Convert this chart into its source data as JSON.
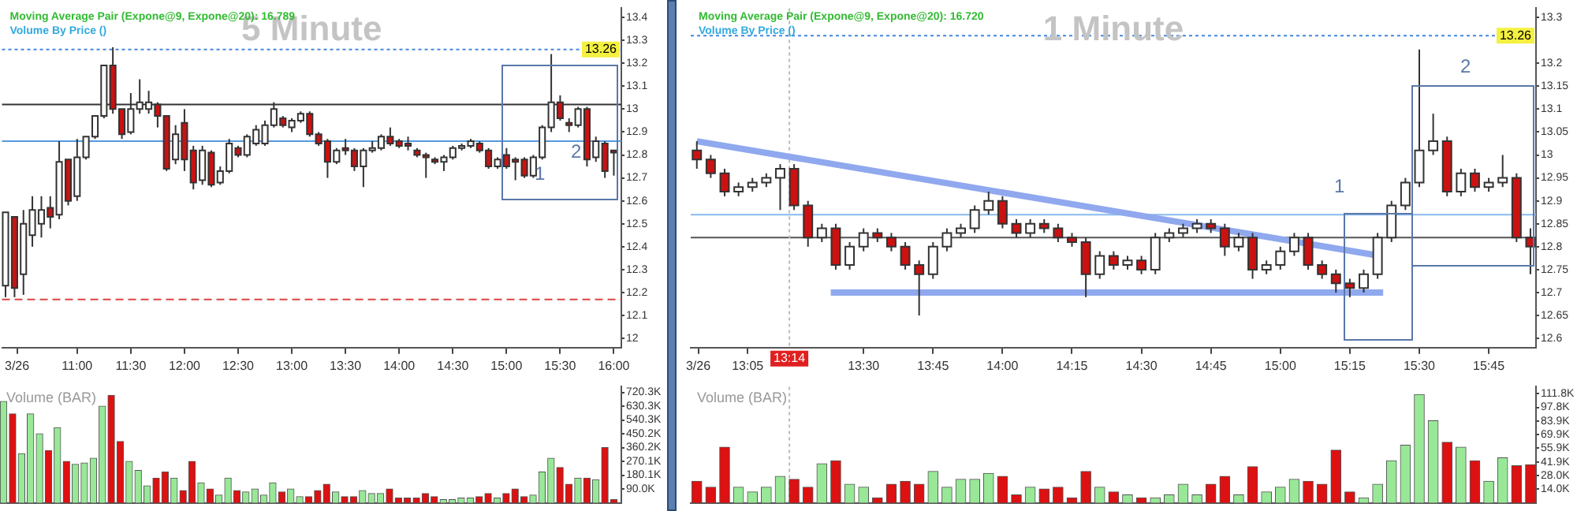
{
  "chart_data": [
    {
      "type": "candlestick",
      "title": "5 Minute",
      "x": [
        10.333,
        10.417,
        10.5,
        10.583,
        10.667,
        10.75,
        10.833,
        10.917,
        11,
        11.083,
        11.167,
        11.25,
        11.333,
        11.417,
        11.5,
        11.583,
        11.667,
        11.75,
        11.833,
        11.917,
        12,
        12.083,
        12.167,
        12.25,
        12.333,
        12.417,
        12.5,
        12.583,
        12.667,
        12.75,
        12.833,
        12.917,
        13,
        13.083,
        13.167,
        13.25,
        13.333,
        13.417,
        13.5,
        13.583,
        13.667,
        13.75,
        13.833,
        13.917,
        14,
        14.083,
        14.167,
        14.25,
        14.333,
        14.417,
        14.5,
        14.583,
        14.667,
        14.75,
        14.833,
        14.917,
        15,
        15.083,
        15.167,
        15.25,
        15.333,
        15.417,
        15.5,
        15.583,
        15.667,
        15.75,
        15.833,
        15.917,
        16
      ],
      "ohlc": [
        [
          12.23,
          12.55,
          12.18,
          12.55
        ],
        [
          12.53,
          12.53,
          12.18,
          12.22
        ],
        [
          12.28,
          12.56,
          12.19,
          12.5
        ],
        [
          12.45,
          12.62,
          12.4,
          12.56
        ],
        [
          12.5,
          12.62,
          12.44,
          12.56
        ],
        [
          12.57,
          12.62,
          12.48,
          12.53
        ],
        [
          12.54,
          12.86,
          12.52,
          12.77
        ],
        [
          12.78,
          12.78,
          12.58,
          12.6
        ],
        [
          12.62,
          12.87,
          12.6,
          12.79
        ],
        [
          12.79,
          12.88,
          12.78,
          12.88
        ],
        [
          12.88,
          12.97,
          12.87,
          12.97
        ],
        [
          12.97,
          13.19,
          12.96,
          13.19
        ],
        [
          13.19,
          13.27,
          12.98,
          13.0
        ],
        [
          13.0,
          13.0,
          12.87,
          12.89
        ],
        [
          12.9,
          13.07,
          12.89,
          13.0
        ],
        [
          13.0,
          13.13,
          12.98,
          13.03
        ],
        [
          13.0,
          13.08,
          12.98,
          13.03
        ],
        [
          13.02,
          13.03,
          12.92,
          12.97
        ],
        [
          12.97,
          12.97,
          12.73,
          12.74
        ],
        [
          12.78,
          12.93,
          12.76,
          12.89
        ],
        [
          12.94,
          13.0,
          12.73,
          12.78
        ],
        [
          12.82,
          12.84,
          12.65,
          12.68
        ],
        [
          12.69,
          12.84,
          12.67,
          12.82
        ],
        [
          12.81,
          12.82,
          12.66,
          12.67
        ],
        [
          12.68,
          12.75,
          12.67,
          12.73
        ],
        [
          12.73,
          12.87,
          12.72,
          12.85
        ],
        [
          12.83,
          12.84,
          12.79,
          12.8
        ],
        [
          12.8,
          12.89,
          12.79,
          12.88
        ],
        [
          12.85,
          12.93,
          12.84,
          12.91
        ],
        [
          12.85,
          12.95,
          12.84,
          12.93
        ],
        [
          12.93,
          13.03,
          12.92,
          13.0
        ],
        [
          12.96,
          12.97,
          12.92,
          12.93
        ],
        [
          12.92,
          12.96,
          12.9,
          12.95
        ],
        [
          12.95,
          12.99,
          12.94,
          12.98
        ],
        [
          12.98,
          12.99,
          12.88,
          12.89
        ],
        [
          12.89,
          12.9,
          12.84,
          12.85
        ],
        [
          12.86,
          12.87,
          12.7,
          12.77
        ],
        [
          12.77,
          12.83,
          12.76,
          12.82
        ],
        [
          12.83,
          12.87,
          12.8,
          12.82
        ],
        [
          12.82,
          12.83,
          12.73,
          12.75
        ],
        [
          12.75,
          12.83,
          12.66,
          12.82
        ],
        [
          12.82,
          12.86,
          12.81,
          12.83
        ],
        [
          12.83,
          12.89,
          12.82,
          12.88
        ],
        [
          12.88,
          12.92,
          12.84,
          12.85
        ],
        [
          12.86,
          12.87,
          12.83,
          12.84
        ],
        [
          12.85,
          12.88,
          12.82,
          12.84
        ],
        [
          12.82,
          12.83,
          12.79,
          12.8
        ],
        [
          12.8,
          12.81,
          12.7,
          12.79
        ],
        [
          12.78,
          12.79,
          12.76,
          12.77
        ],
        [
          12.77,
          12.8,
          12.73,
          12.79
        ],
        [
          12.79,
          12.84,
          12.78,
          12.83
        ],
        [
          12.83,
          12.85,
          12.82,
          12.84
        ],
        [
          12.84,
          12.87,
          12.83,
          12.86
        ],
        [
          12.85,
          12.86,
          12.81,
          12.82
        ],
        [
          12.82,
          12.83,
          12.74,
          12.75
        ],
        [
          12.75,
          12.79,
          12.74,
          12.78
        ],
        [
          12.8,
          12.83,
          12.74,
          12.75
        ],
        [
          12.78,
          12.79,
          12.69,
          12.77
        ],
        [
          12.78,
          12.79,
          12.7,
          12.71
        ],
        [
          12.71,
          12.8,
          12.7,
          12.79
        ],
        [
          12.79,
          12.93,
          12.78,
          12.92
        ],
        [
          12.92,
          13.24,
          12.9,
          13.03
        ],
        [
          13.03,
          13.06,
          12.95,
          12.96
        ],
        [
          12.94,
          12.96,
          12.9,
          12.93
        ],
        [
          12.93,
          13.01,
          12.92,
          13.0
        ],
        [
          13.0,
          13.01,
          12.75,
          12.78
        ],
        [
          12.79,
          12.88,
          12.77,
          12.86
        ],
        [
          12.85,
          12.86,
          12.7,
          12.73
        ],
        [
          12.82,
          12.82,
          12.71,
          12.81
        ]
      ],
      "colors": [
        "#ffffff",
        "#cc1111",
        "#ffffff",
        "#ffffff",
        "#ffffff",
        "#cc1111",
        "#ffffff",
        "#cc1111",
        "#ffffff",
        "#ffffff",
        "#ffffff",
        "#ffffff",
        "#cc1111",
        "#cc1111",
        "#ffffff",
        "#ffffff",
        "#ffffff",
        "#cc1111",
        "#cc1111",
        "#ffffff",
        "#cc1111",
        "#cc1111",
        "#ffffff",
        "#cc1111",
        "#ffffff",
        "#ffffff",
        "#cc1111",
        "#ffffff",
        "#ffffff",
        "#ffffff",
        "#ffffff",
        "#cc1111",
        "#ffffff",
        "#ffffff",
        "#cc1111",
        "#cc1111",
        "#cc1111",
        "#ffffff",
        "#cc1111",
        "#cc1111",
        "#ffffff",
        "#ffffff",
        "#ffffff",
        "#cc1111",
        "#cc1111",
        "#cc1111",
        "#cc1111",
        "#cc1111",
        "#cc1111",
        "#ffffff",
        "#ffffff",
        "#ffffff",
        "#ffffff",
        "#cc1111",
        "#cc1111",
        "#ffffff",
        "#cc1111",
        "#cc1111",
        "#cc1111",
        "#ffffff",
        "#ffffff",
        "#ffffff",
        "#cc1111",
        "#cc1111",
        "#ffffff",
        "#cc1111",
        "#ffffff",
        "#cc1111",
        "#cc1111"
      ],
      "xlim": [
        10.3,
        16.07
      ],
      "ylim": [
        11.96,
        13.44
      ],
      "xticks": [
        {
          "value": 10.44,
          "label": "3/26"
        },
        {
          "value": 11,
          "label": "11:00"
        },
        {
          "value": 11.5,
          "label": "11:30"
        },
        {
          "value": 12,
          "label": "12:00"
        },
        {
          "value": 12.5,
          "label": "12:30"
        },
        {
          "value": 13,
          "label": "13:00"
        },
        {
          "value": 13.5,
          "label": "13:30"
        },
        {
          "value": 14,
          "label": "14:00"
        },
        {
          "value": 14.5,
          "label": "14:30"
        },
        {
          "value": 15,
          "label": "15:00"
        },
        {
          "value": 15.5,
          "label": "15:30"
        },
        {
          "value": 16,
          "label": "16:00"
        }
      ],
      "yticks": [
        12,
        12.1,
        12.2,
        12.3,
        12.4,
        12.5,
        12.6,
        12.7,
        12.8,
        12.9,
        13,
        13.1,
        13.2,
        13.3,
        13.4
      ],
      "ref_lines": [
        {
          "axis": "y",
          "value": 13.26,
          "label": "13.26",
          "color": "#4488dd",
          "line_style": "dotted"
        },
        {
          "axis": "y",
          "value": 13.02,
          "color": "#333333"
        },
        {
          "axis": "y",
          "value": 12.86,
          "color": "#5599dd"
        },
        {
          "axis": "y",
          "value": 12.17,
          "color": "#dd4444",
          "line_style": "dashed"
        }
      ],
      "annotations": [
        "Moving Average Pair (Expone@9, Expone@20): 16.789",
        "Volume By Price ()",
        "1",
        "2"
      ]
    },
    {
      "type": "candlestick",
      "title": "1 Minute",
      "x": [
        12.9,
        12.95,
        13,
        13.05,
        13.1,
        13.15,
        13.2,
        13.25,
        13.3,
        13.35,
        13.4,
        13.45,
        13.5,
        13.55,
        13.6,
        13.65,
        13.7,
        13.75,
        13.8,
        13.85,
        13.9,
        13.95,
        14,
        14.05,
        14.1,
        14.15,
        14.2,
        14.25,
        14.3,
        14.35,
        14.4,
        14.45,
        14.5,
        14.55,
        14.6,
        14.65,
        14.7,
        14.75,
        14.8,
        14.85,
        14.9,
        14.95,
        15,
        15.05,
        15.1,
        15.15,
        15.2,
        15.25,
        15.3,
        15.35,
        15.4,
        15.45,
        15.5,
        15.55,
        15.6,
        15.65,
        15.7,
        15.75,
        15.8,
        15.85,
        15.9
      ],
      "ohlc": [
        [
          13.01,
          13.03,
          12.97,
          12.99
        ],
        [
          12.99,
          13.0,
          12.95,
          12.96
        ],
        [
          12.96,
          12.97,
          12.91,
          12.92
        ],
        [
          12.92,
          12.94,
          12.91,
          12.93
        ],
        [
          12.93,
          12.95,
          12.92,
          12.94
        ],
        [
          12.94,
          12.96,
          12.93,
          12.95
        ],
        [
          12.95,
          12.98,
          12.88,
          12.97
        ],
        [
          12.97,
          12.98,
          12.88,
          12.89
        ],
        [
          12.89,
          12.9,
          12.8,
          12.82
        ],
        [
          12.82,
          12.85,
          12.81,
          12.84
        ],
        [
          12.84,
          12.85,
          12.75,
          12.76
        ],
        [
          12.76,
          12.81,
          12.75,
          12.8
        ],
        [
          12.8,
          12.84,
          12.79,
          12.83
        ],
        [
          12.83,
          12.84,
          12.81,
          12.82
        ],
        [
          12.82,
          12.83,
          12.79,
          12.8
        ],
        [
          12.8,
          12.81,
          12.75,
          12.76
        ],
        [
          12.76,
          12.77,
          12.65,
          12.74
        ],
        [
          12.74,
          12.81,
          12.73,
          12.8
        ],
        [
          12.8,
          12.84,
          12.79,
          12.83
        ],
        [
          12.83,
          12.85,
          12.82,
          12.84
        ],
        [
          12.84,
          12.89,
          12.83,
          12.88
        ],
        [
          12.88,
          12.92,
          12.87,
          12.9
        ],
        [
          12.9,
          12.91,
          12.84,
          12.85
        ],
        [
          12.85,
          12.86,
          12.82,
          12.83
        ],
        [
          12.83,
          12.86,
          12.82,
          12.85
        ],
        [
          12.85,
          12.86,
          12.83,
          12.84
        ],
        [
          12.84,
          12.85,
          12.81,
          12.82
        ],
        [
          12.82,
          12.83,
          12.8,
          12.81
        ],
        [
          12.81,
          12.82,
          12.69,
          12.74
        ],
        [
          12.74,
          12.79,
          12.73,
          12.78
        ],
        [
          12.78,
          12.79,
          12.75,
          12.76
        ],
        [
          12.76,
          12.78,
          12.75,
          12.77
        ],
        [
          12.77,
          12.78,
          12.74,
          12.75
        ],
        [
          12.75,
          12.83,
          12.74,
          12.82
        ],
        [
          12.82,
          12.84,
          12.81,
          12.83
        ],
        [
          12.83,
          12.85,
          12.82,
          12.84
        ],
        [
          12.84,
          12.86,
          12.83,
          12.85
        ],
        [
          12.85,
          12.86,
          12.83,
          12.84
        ],
        [
          12.84,
          12.85,
          12.78,
          12.8
        ],
        [
          12.8,
          12.83,
          12.79,
          12.82
        ],
        [
          12.82,
          12.83,
          12.73,
          12.75
        ],
        [
          12.75,
          12.77,
          12.74,
          12.76
        ],
        [
          12.76,
          12.8,
          12.75,
          12.79
        ],
        [
          12.79,
          12.83,
          12.78,
          12.82
        ],
        [
          12.82,
          12.83,
          12.75,
          12.76
        ],
        [
          12.76,
          12.77,
          12.73,
          12.74
        ],
        [
          12.74,
          12.75,
          12.7,
          12.72
        ],
        [
          12.72,
          12.73,
          12.69,
          12.71
        ],
        [
          12.71,
          12.75,
          12.7,
          12.74
        ],
        [
          12.74,
          12.83,
          12.73,
          12.82
        ],
        [
          12.82,
          12.9,
          12.81,
          12.89
        ],
        [
          12.89,
          12.95,
          12.88,
          12.94
        ],
        [
          12.94,
          13.23,
          12.93,
          13.01
        ],
        [
          13.01,
          13.09,
          13.0,
          13.03
        ],
        [
          13.03,
          13.04,
          12.91,
          12.92
        ],
        [
          12.92,
          12.97,
          12.91,
          12.96
        ],
        [
          12.96,
          12.97,
          12.92,
          12.93
        ],
        [
          12.93,
          12.95,
          12.92,
          12.94
        ],
        [
          12.94,
          13.0,
          12.93,
          12.95
        ],
        [
          12.95,
          12.96,
          12.81,
          12.82
        ],
        [
          12.82,
          12.84,
          12.74,
          12.8
        ]
      ],
      "colors": [
        "#cc1111",
        "#cc1111",
        "#cc1111",
        "#ffffff",
        "#ffffff",
        "#ffffff",
        "#ffffff",
        "#cc1111",
        "#cc1111",
        "#ffffff",
        "#cc1111",
        "#ffffff",
        "#ffffff",
        "#cc1111",
        "#cc1111",
        "#cc1111",
        "#cc1111",
        "#ffffff",
        "#ffffff",
        "#ffffff",
        "#ffffff",
        "#ffffff",
        "#cc1111",
        "#cc1111",
        "#ffffff",
        "#cc1111",
        "#cc1111",
        "#cc1111",
        "#cc1111",
        "#ffffff",
        "#cc1111",
        "#ffffff",
        "#cc1111",
        "#ffffff",
        "#ffffff",
        "#ffffff",
        "#ffffff",
        "#cc1111",
        "#cc1111",
        "#ffffff",
        "#cc1111",
        "#ffffff",
        "#ffffff",
        "#ffffff",
        "#cc1111",
        "#cc1111",
        "#cc1111",
        "#cc1111",
        "#ffffff",
        "#ffffff",
        "#ffffff",
        "#ffffff",
        "#ffffff",
        "#ffffff",
        "#cc1111",
        "#ffffff",
        "#cc1111",
        "#ffffff",
        "#ffffff",
        "#cc1111",
        "#cc1111"
      ],
      "series": [
        {
          "type": "line",
          "color": "#8fa8ee",
          "x": [
            12.9,
            15.36
          ],
          "values": [
            13.03,
            12.78
          ]
        },
        {
          "type": "line",
          "color": "#8fa8ee",
          "x": [
            13.382,
            15.37
          ],
          "values": [
            12.7,
            12.7
          ]
        }
      ],
      "xlim": [
        12.878,
        15.92
      ],
      "ylim": [
        12.58,
        13.32
      ],
      "xticks": [
        {
          "value": 12.905,
          "label": "3/26"
        },
        {
          "value": 13.083,
          "label": "13:05"
        },
        {
          "value": 13.5,
          "label": "13:30"
        },
        {
          "value": 13.75,
          "label": "13:45"
        },
        {
          "value": 14,
          "label": "14:00"
        },
        {
          "value": 14.25,
          "label": "14:15"
        },
        {
          "value": 14.5,
          "label": "14:30"
        },
        {
          "value": 14.75,
          "label": "14:45"
        },
        {
          "value": 15,
          "label": "15:00"
        },
        {
          "value": 15.25,
          "label": "15:15"
        },
        {
          "value": 15.5,
          "label": "15:30"
        },
        {
          "value": 15.75,
          "label": "15:45"
        }
      ],
      "yticks": [
        12.6,
        12.65,
        12.7,
        12.75,
        12.8,
        12.85,
        12.9,
        12.95,
        13,
        13.05,
        13.1,
        13.15,
        13.2,
        13.3
      ],
      "ref_lines": [
        {
          "axis": "y",
          "value": 13.26,
          "label": "13.26",
          "color": "#4488dd",
          "line_style": "dotted"
        },
        {
          "axis": "y",
          "value": 12.87,
          "color": "#88bbee"
        },
        {
          "axis": "y",
          "value": 12.82,
          "color": "#555555"
        },
        {
          "axis": "x",
          "value": 13.233,
          "label": "13:14",
          "color": "#bbbbbb",
          "line_style": "dotted"
        }
      ],
      "annotations": [
        "Moving Average Pair (Expone@9, Expone@20): 16.720",
        "Volume By Price ()",
        "1",
        "2"
      ]
    },
    {
      "type": "bar",
      "title": "Volume (BAR)",
      "x": [
        10.333,
        10.417,
        10.5,
        10.583,
        10.667,
        10.75,
        10.833,
        10.917,
        11,
        11.083,
        11.167,
        11.25,
        11.333,
        11.417,
        11.5,
        11.583,
        11.667,
        11.75,
        11.833,
        11.917,
        12,
        12.083,
        12.167,
        12.25,
        12.333,
        12.417,
        12.5,
        12.583,
        12.667,
        12.75,
        12.833,
        12.917,
        13,
        13.083,
        13.167,
        13.25,
        13.333,
        13.417,
        13.5,
        13.583,
        13.667,
        13.75,
        13.833,
        13.917,
        14,
        14.083,
        14.167,
        14.25,
        14.333,
        14.417,
        14.5,
        14.583,
        14.667,
        14.75,
        14.833,
        14.917,
        15,
        15.083,
        15.167,
        15.25,
        15.333,
        15.417,
        15.5,
        15.583,
        15.667,
        15.75,
        15.833,
        15.917,
        16
      ],
      "values": [
        660,
        580,
        320,
        580,
        450,
        340,
        490,
        270,
        250,
        260,
        290,
        630,
        700,
        400,
        270,
        210,
        110,
        160,
        200,
        160,
        80,
        270,
        130,
        90,
        50,
        160,
        80,
        70,
        90,
        50,
        130,
        70,
        90,
        40,
        40,
        80,
        120,
        70,
        40,
        40,
        80,
        60,
        60,
        90,
        30,
        30,
        30,
        60,
        40,
        20,
        20,
        30,
        30,
        40,
        60,
        30,
        60,
        90,
        40,
        50,
        200,
        290,
        230,
        120,
        160,
        160,
        150,
        360,
        20
      ],
      "colors": [
        "#98e898",
        "#dd1111",
        "#98e898",
        "#98e898",
        "#98e898",
        "#dd1111",
        "#98e898",
        "#dd1111",
        "#98e898",
        "#98e898",
        "#98e898",
        "#98e898",
        "#dd1111",
        "#dd1111",
        "#98e898",
        "#98e898",
        "#98e898",
        "#dd1111",
        "#dd1111",
        "#98e898",
        "#dd1111",
        "#dd1111",
        "#98e898",
        "#dd1111",
        "#98e898",
        "#98e898",
        "#dd1111",
        "#98e898",
        "#98e898",
        "#98e898",
        "#98e898",
        "#dd1111",
        "#98e898",
        "#98e898",
        "#dd1111",
        "#dd1111",
        "#dd1111",
        "#98e898",
        "#dd1111",
        "#dd1111",
        "#98e898",
        "#98e898",
        "#98e898",
        "#dd1111",
        "#dd1111",
        "#dd1111",
        "#dd1111",
        "#dd1111",
        "#dd1111",
        "#98e898",
        "#98e898",
        "#98e898",
        "#98e898",
        "#dd1111",
        "#dd1111",
        "#98e898",
        "#dd1111",
        "#dd1111",
        "#dd1111",
        "#98e898",
        "#98e898",
        "#98e898",
        "#dd1111",
        "#dd1111",
        "#98e898",
        "#dd1111",
        "#98e898",
        "#dd1111",
        "#dd1111"
      ],
      "xlim": [
        10.3,
        16.07
      ],
      "ylim": [
        0,
        757
      ],
      "tick_labels": "y",
      "yticks": [
        {
          "value": 90,
          "label": "90.0K"
        },
        {
          "value": 180.1,
          "label": "180.1K"
        },
        {
          "value": 270.1,
          "label": "270.1K"
        },
        {
          "value": 360.2,
          "label": "360.2K"
        },
        {
          "value": 450.2,
          "label": "450.2K"
        },
        {
          "value": 540.3,
          "label": "540.3K"
        },
        {
          "value": 630.3,
          "label": "630.3K"
        },
        {
          "value": 720.3,
          "label": "720.3K"
        }
      ]
    },
    {
      "type": "bar",
      "title": "Volume (BAR)",
      "x": [
        12.9,
        12.95,
        13,
        13.05,
        13.1,
        13.15,
        13.2,
        13.25,
        13.3,
        13.35,
        13.4,
        13.45,
        13.5,
        13.55,
        13.6,
        13.65,
        13.7,
        13.75,
        13.8,
        13.85,
        13.9,
        13.95,
        14,
        14.05,
        14.1,
        14.15,
        14.2,
        14.25,
        14.3,
        14.35,
        14.4,
        14.45,
        14.5,
        14.55,
        14.6,
        14.65,
        14.7,
        14.75,
        14.8,
        14.85,
        14.9,
        14.95,
        15,
        15.05,
        15.1,
        15.15,
        15.2,
        15.25,
        15.3,
        15.35,
        15.4,
        15.45,
        15.5,
        15.55,
        15.6,
        15.65,
        15.7,
        15.75,
        15.8,
        15.85,
        15.9
      ],
      "values": [
        22,
        16,
        57,
        16,
        11,
        16,
        27,
        24,
        16,
        40,
        43,
        19,
        16,
        5,
        19,
        22,
        19,
        32,
        16,
        24,
        24,
        30,
        27,
        8,
        16,
        14,
        16,
        5,
        32,
        16,
        11,
        8,
        5,
        5,
        8,
        19,
        8,
        19,
        27,
        8,
        37,
        11,
        16,
        24,
        22,
        19,
        54,
        11,
        5,
        19,
        43,
        59,
        111,
        84,
        62,
        57,
        43,
        22,
        46,
        38,
        39
      ],
      "colors": [
        "#dd1111",
        "#dd1111",
        "#dd1111",
        "#98e898",
        "#98e898",
        "#98e898",
        "#98e898",
        "#dd1111",
        "#dd1111",
        "#98e898",
        "#dd1111",
        "#98e898",
        "#98e898",
        "#dd1111",
        "#dd1111",
        "#dd1111",
        "#dd1111",
        "#98e898",
        "#98e898",
        "#98e898",
        "#98e898",
        "#98e898",
        "#dd1111",
        "#dd1111",
        "#98e898",
        "#dd1111",
        "#dd1111",
        "#dd1111",
        "#dd1111",
        "#98e898",
        "#dd1111",
        "#98e898",
        "#dd1111",
        "#98e898",
        "#98e898",
        "#98e898",
        "#98e898",
        "#dd1111",
        "#dd1111",
        "#98e898",
        "#dd1111",
        "#98e898",
        "#98e898",
        "#98e898",
        "#dd1111",
        "#dd1111",
        "#dd1111",
        "#dd1111",
        "#98e898",
        "#98e898",
        "#98e898",
        "#98e898",
        "#98e898",
        "#98e898",
        "#dd1111",
        "#98e898",
        "#dd1111",
        "#98e898",
        "#98e898",
        "#dd1111",
        "#dd1111"
      ],
      "xlim": [
        12.878,
        15.92
      ],
      "ylim": [
        0,
        119
      ],
      "tick_labels": "y",
      "yticks": [
        {
          "value": 14,
          "label": "14.0K"
        },
        {
          "value": 28,
          "label": "28.0K"
        },
        {
          "value": 41.9,
          "label": "41.9K"
        },
        {
          "value": 55.9,
          "label": "55.9K"
        },
        {
          "value": 69.9,
          "label": "69.9K"
        },
        {
          "value": 83.9,
          "label": "83.9K"
        },
        {
          "value": 97.8,
          "label": "97.8K"
        },
        {
          "value": 111.8,
          "label": "111.8K"
        }
      ],
      "ref_lines": [
        {
          "axis": "x",
          "value": 13.233,
          "color": "#bbbbbb",
          "line_style": "dotted"
        }
      ]
    }
  ]
}
